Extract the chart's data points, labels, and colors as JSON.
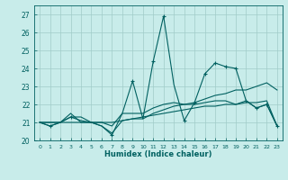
{
  "title": "",
  "xlabel": "Humidex (Indice chaleur)",
  "x_values": [
    0,
    1,
    2,
    3,
    4,
    5,
    6,
    7,
    8,
    9,
    10,
    11,
    12,
    13,
    14,
    15,
    16,
    17,
    18,
    19,
    20,
    21,
    22,
    23
  ],
  "line1_y": [
    21.0,
    20.8,
    21.0,
    21.3,
    21.3,
    21.0,
    20.8,
    20.3,
    21.5,
    23.3,
    21.2,
    24.4,
    26.9,
    23.1,
    21.1,
    22.1,
    23.7,
    24.3,
    24.1,
    24.0,
    22.2,
    21.8,
    22.0,
    20.8
  ],
  "line2_y": [
    21.0,
    20.8,
    21.0,
    21.3,
    21.1,
    21.0,
    20.8,
    20.4,
    21.1,
    21.2,
    21.2,
    21.5,
    21.7,
    21.9,
    22.0,
    22.1,
    22.3,
    22.5,
    22.6,
    22.8,
    22.8,
    23.0,
    23.2,
    22.8
  ],
  "line3_y": [
    21.0,
    21.0,
    21.0,
    21.0,
    21.0,
    21.0,
    21.0,
    21.0,
    21.1,
    21.2,
    21.3,
    21.4,
    21.5,
    21.6,
    21.7,
    21.8,
    21.9,
    21.9,
    22.0,
    22.0,
    22.1,
    22.1,
    22.2,
    20.8
  ],
  "line4_y": [
    21.0,
    21.0,
    21.0,
    21.5,
    21.0,
    21.0,
    21.0,
    20.8,
    21.5,
    21.5,
    21.5,
    21.8,
    22.0,
    22.1,
    22.0,
    22.0,
    22.1,
    22.2,
    22.2,
    22.0,
    22.2,
    21.8,
    22.0,
    20.8
  ],
  "marker1_x": [
    1,
    3,
    7,
    9,
    11,
    12,
    14,
    15,
    16,
    17,
    18,
    19,
    20,
    21,
    22,
    23
  ],
  "line_color": "#006060",
  "bg_color": "#c8ecea",
  "grid_color": "#a0ccc8",
  "ylim": [
    20.0,
    27.5
  ],
  "yticks": [
    20,
    21,
    22,
    23,
    24,
    25,
    26,
    27
  ],
  "xlim": [
    -0.5,
    23.5
  ],
  "figwidth": 3.2,
  "figheight": 2.0,
  "dpi": 100
}
